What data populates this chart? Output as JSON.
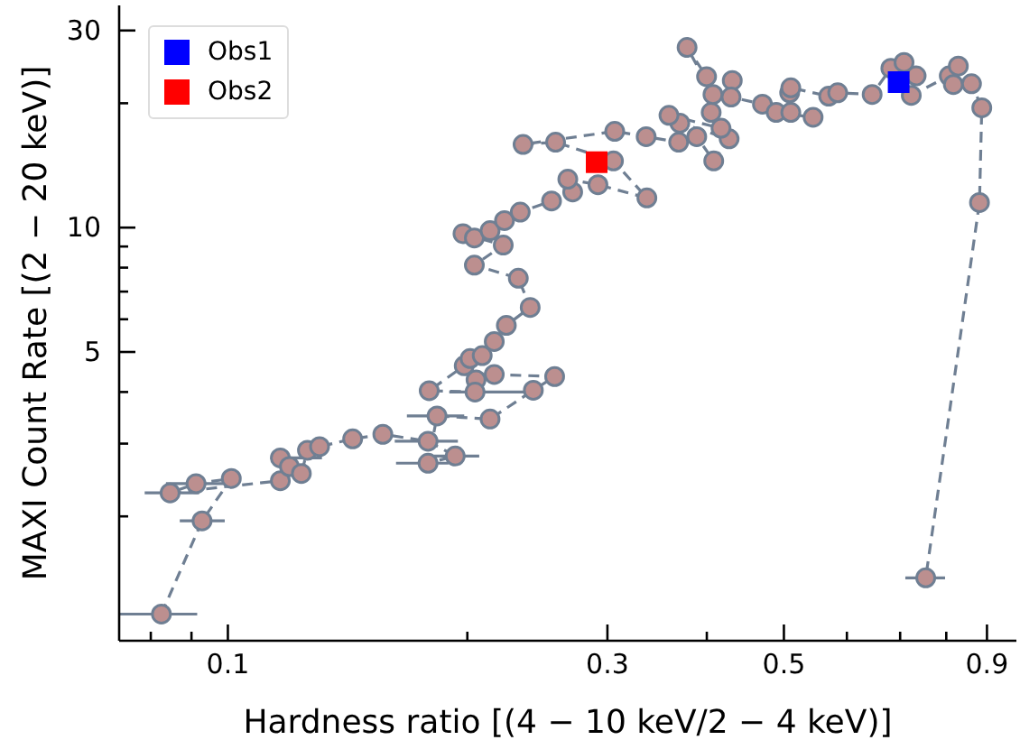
{
  "chart_data": {
    "type": "scatter",
    "xlabel": "Hardness ratio [(4 − 10 keV/2 − 4 keV)]",
    "ylabel": "MAXI Count Rate [(2 − 20 keV)]",
    "log": "xy",
    "grid": false,
    "legend": "top left",
    "xlim": [
      0.073,
      0.98
    ],
    "ylim": [
      1,
      34.5
    ],
    "xticks": [
      {
        "value": 0.08,
        "label": null
      },
      {
        "value": 0.09,
        "label": null
      },
      0.1,
      {
        "value": 0.2,
        "label": null
      },
      0.3,
      {
        "value": 0.4,
        "label": null
      },
      0.5,
      {
        "value": 0.6,
        "label": null
      },
      {
        "value": 0.7,
        "label": null
      },
      {
        "value": 0.8,
        "label": null
      },
      0.9
    ],
    "yticks": [
      {
        "value": 2,
        "label": null
      },
      {
        "value": 3,
        "label": null
      },
      {
        "value": 4,
        "label": null
      },
      5,
      {
        "value": 6,
        "label": null
      },
      {
        "value": 7,
        "label": null
      },
      {
        "value": 8,
        "label": null
      },
      {
        "value": 9,
        "label": null
      },
      10,
      {
        "value": 20,
        "label": null
      },
      30
    ],
    "series": [
      {
        "type": "line",
        "color": "#bc8f8f",
        "marker": "circle",
        "line_style": "dashed",
        "x": [
          0.0825,
          0.0928,
          0.101,
          0.0912,
          0.0846,
          0.1164,
          0.1164,
          0.1195,
          0.1237,
          0.1259,
          0.1304,
          0.1435,
          0.1566,
          0.1785,
          0.1931,
          0.1785,
          0.1832,
          0.2136,
          0.2421,
          0.2575,
          0.2162,
          0.2051,
          0.2045,
          0.1791,
          0.1982,
          0.2016,
          0.2088,
          0.2162,
          0.2239,
          0.2399,
          0.2318,
          0.2041,
          0.2219,
          0.1975,
          0.2041,
          0.2136,
          0.2227,
          0.2331,
          0.2552,
          0.2713,
          0.2675,
          0.2919,
          0.3363,
          0.3053,
          0.2582,
          0.235,
          0.3064,
          0.3356,
          0.3687,
          0.3885,
          0.4081,
          0.4267,
          0.37,
          0.3585,
          0.4168,
          0.4051,
          0.4072,
          0.3778,
          0.3997,
          0.4306,
          0.4291,
          0.4699,
          0.4889,
          0.5441,
          0.5101,
          0.5084,
          0.5101,
          0.5692,
          0.5843,
          0.6455,
          0.6814,
          0.7079,
          0.7332,
          0.7229,
          0.8069,
          0.8284,
          0.8166,
          0.8606,
          0.8866,
          0.8807,
          0.7538
        ],
        "values": [
          1.16,
          1.95,
          2.47,
          2.4,
          2.28,
          2.44,
          2.77,
          2.64,
          2.54,
          2.89,
          2.95,
          3.08,
          3.16,
          3.04,
          2.8,
          2.69,
          3.5,
          3.44,
          4.04,
          4.36,
          4.41,
          4.28,
          4.0,
          4.03,
          4.63,
          4.82,
          4.9,
          5.3,
          5.8,
          6.41,
          7.54,
          8.11,
          9.07,
          9.67,
          9.44,
          9.83,
          10.4,
          10.9,
          11.6,
          12.2,
          13.1,
          12.7,
          11.8,
          14.5,
          16.1,
          15.9,
          17.1,
          16.6,
          16.1,
          16.6,
          14.5,
          16.4,
          17.9,
          18.7,
          17.4,
          19.0,
          21.0,
          27.3,
          23.2,
          22.7,
          20.7,
          19.9,
          19.0,
          18.5,
          19.0,
          21.2,
          21.8,
          20.8,
          21.2,
          21.0,
          24.3,
          25.1,
          23.3,
          20.9,
          23.3,
          24.6,
          22.2,
          22.3,
          19.5,
          11.5,
          1.42
        ],
        "xerrors": [
          [
            0.073,
            0.0915
          ],
          [
            0.087,
            0.0991
          ],
          null,
          [
            0.0836,
            0.1004
          ],
          [
            0.0786,
            0.092
          ],
          null,
          [
            0.1135,
            0.1313
          ],
          null,
          null,
          null,
          null,
          null,
          null,
          [
            0.1621,
            0.1946
          ],
          [
            0.1816,
            0.207
          ],
          [
            0.1627,
            0.1894
          ],
          [
            0.1679,
            0.1982
          ],
          null,
          null,
          null,
          null,
          null,
          [
            0.1898,
            0.236
          ],
          null,
          null,
          null,
          null,
          null,
          null,
          null,
          null,
          null,
          null,
          null,
          null,
          null,
          null,
          null,
          null,
          null,
          null,
          null,
          null,
          null,
          null,
          null,
          null,
          null,
          null,
          null,
          null,
          null,
          null,
          null,
          null,
          null,
          null,
          null,
          null,
          null,
          null,
          null,
          null,
          null,
          null,
          null,
          null,
          null,
          null,
          null,
          null,
          null,
          null,
          null,
          null,
          null,
          null,
          null,
          null,
          null,
          [
            0.7106,
            0.7972
          ]
        ]
      },
      {
        "name": "Obs1",
        "color": "#0000ff",
        "marker": "square",
        "x": [
          0.697
        ],
        "values": [
          22.5
        ]
      },
      {
        "name": "Obs2",
        "color": "#ff0000",
        "marker": "square",
        "x": [
          0.2908
        ],
        "values": [
          14.4
        ]
      }
    ]
  }
}
